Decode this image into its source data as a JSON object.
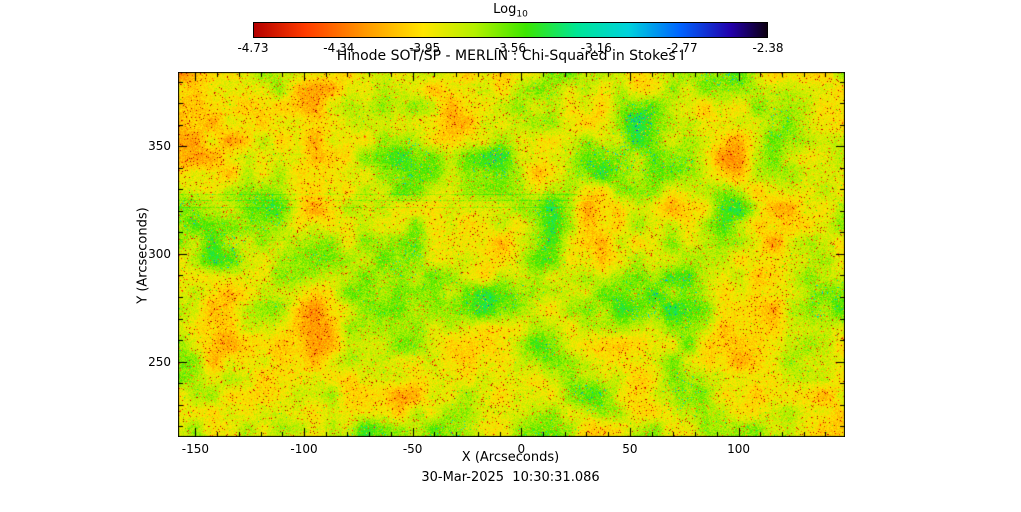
{
  "colorbar": {
    "label_main": "Log",
    "label_sub": "10",
    "tick_labels": [
      "-4.73",
      "-4.34",
      "-3.95",
      "-3.56",
      "-3.16",
      "-2.77",
      "-2.38"
    ],
    "stops": [
      {
        "t": 0.0,
        "color": "#b40000"
      },
      {
        "t": 0.1,
        "color": "#ff3c00"
      },
      {
        "t": 0.22,
        "color": "#ff9b00"
      },
      {
        "t": 0.33,
        "color": "#ffe600"
      },
      {
        "t": 0.43,
        "color": "#b4f000"
      },
      {
        "t": 0.53,
        "color": "#3ce600"
      },
      {
        "t": 0.63,
        "color": "#00e696"
      },
      {
        "t": 0.73,
        "color": "#00d2dc"
      },
      {
        "t": 0.83,
        "color": "#0064ff"
      },
      {
        "t": 0.93,
        "color": "#2300aa"
      },
      {
        "t": 1.0,
        "color": "#0d0012"
      }
    ]
  },
  "chart_data": {
    "type": "heatmap",
    "title": "Hinode SOT/SP - MERLIN : Chi-Squared in Stokes I",
    "xlabel": "X (Arcseconds)",
    "ylabel": "Y (Arcseconds)",
    "timestamp": "30-Mar-2025  10:30:31.086",
    "colorbar_scale_label": "Log10",
    "colorbar_ticks": [
      -4.73,
      -4.34,
      -3.95,
      -3.56,
      -3.16,
      -2.77,
      -2.38
    ],
    "value_range_log10": [
      -4.73,
      -2.38
    ],
    "x_range": [
      -158,
      149
    ],
    "y_range": [
      215,
      384.5
    ],
    "x_major_ticks": [
      -150,
      -100,
      -50,
      0,
      50,
      100
    ],
    "y_major_ticks": [
      250,
      300,
      350
    ],
    "minor_tick_step": 10,
    "description": "Noisy chi-squared map, predominantly yellow-green (~10^-3.8) with red/orange low-value speckles and green-cyan patches of higher chi-squared; faint horizontal streak artifacts near y=325 on the left half"
  },
  "render": {
    "seed": 987654,
    "low_cell": 46,
    "mid_cell": 17,
    "base": 0.4,
    "red_speckle_prob": 0.05,
    "cyan_speckle_prob": 0.015,
    "streak_rows_arcsec": [
      322,
      325,
      328
    ],
    "streak_x_max_arcsec": 35
  }
}
